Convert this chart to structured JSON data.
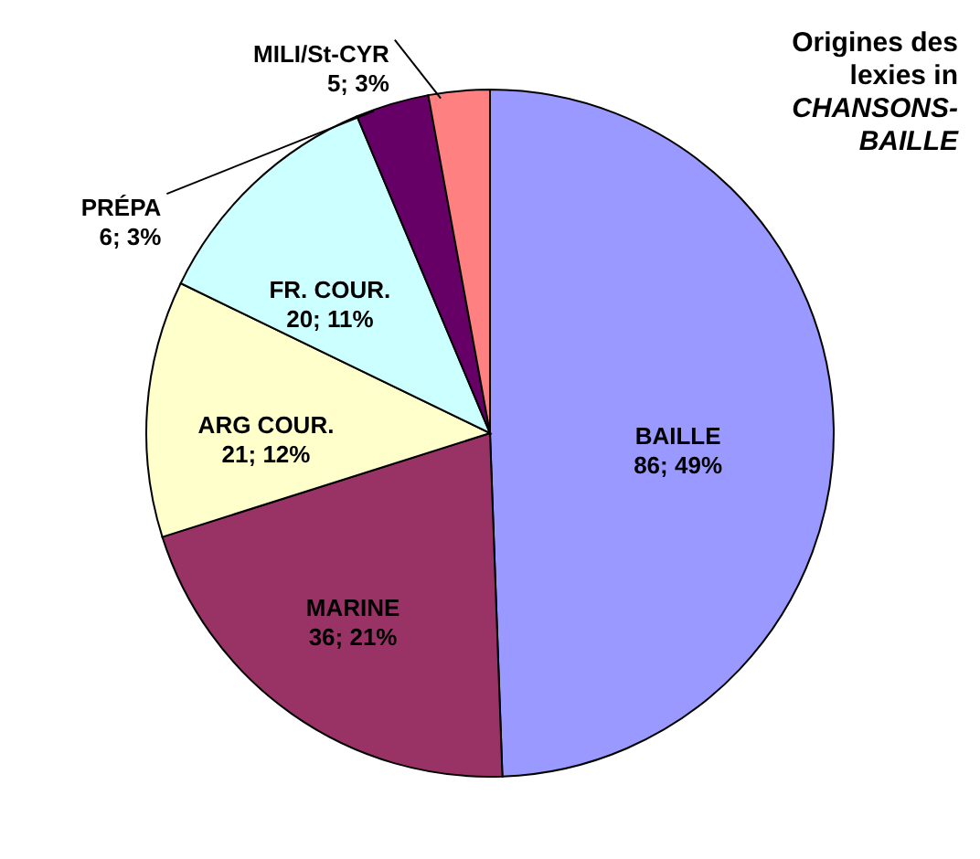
{
  "chart_data": {
    "type": "pie",
    "title": "Origines des lexies in CHANSONS-BAILLE",
    "categories": [
      "BAILLE",
      "MARINE",
      "ARG COUR.",
      "FR. COUR.",
      "PRÉPA",
      "MILI/St-CYR"
    ],
    "values": [
      86,
      36,
      21,
      20,
      6,
      5
    ],
    "colors": [
      "#9999ff",
      "#993366",
      "#ffffcc",
      "#ccffff",
      "#660066",
      "#ff8080"
    ],
    "value_labels": [
      "86; 49%",
      "36; 21%",
      "21; 12%",
      "20; 11%",
      "6; 3%",
      "5; 3%"
    ]
  }
}
